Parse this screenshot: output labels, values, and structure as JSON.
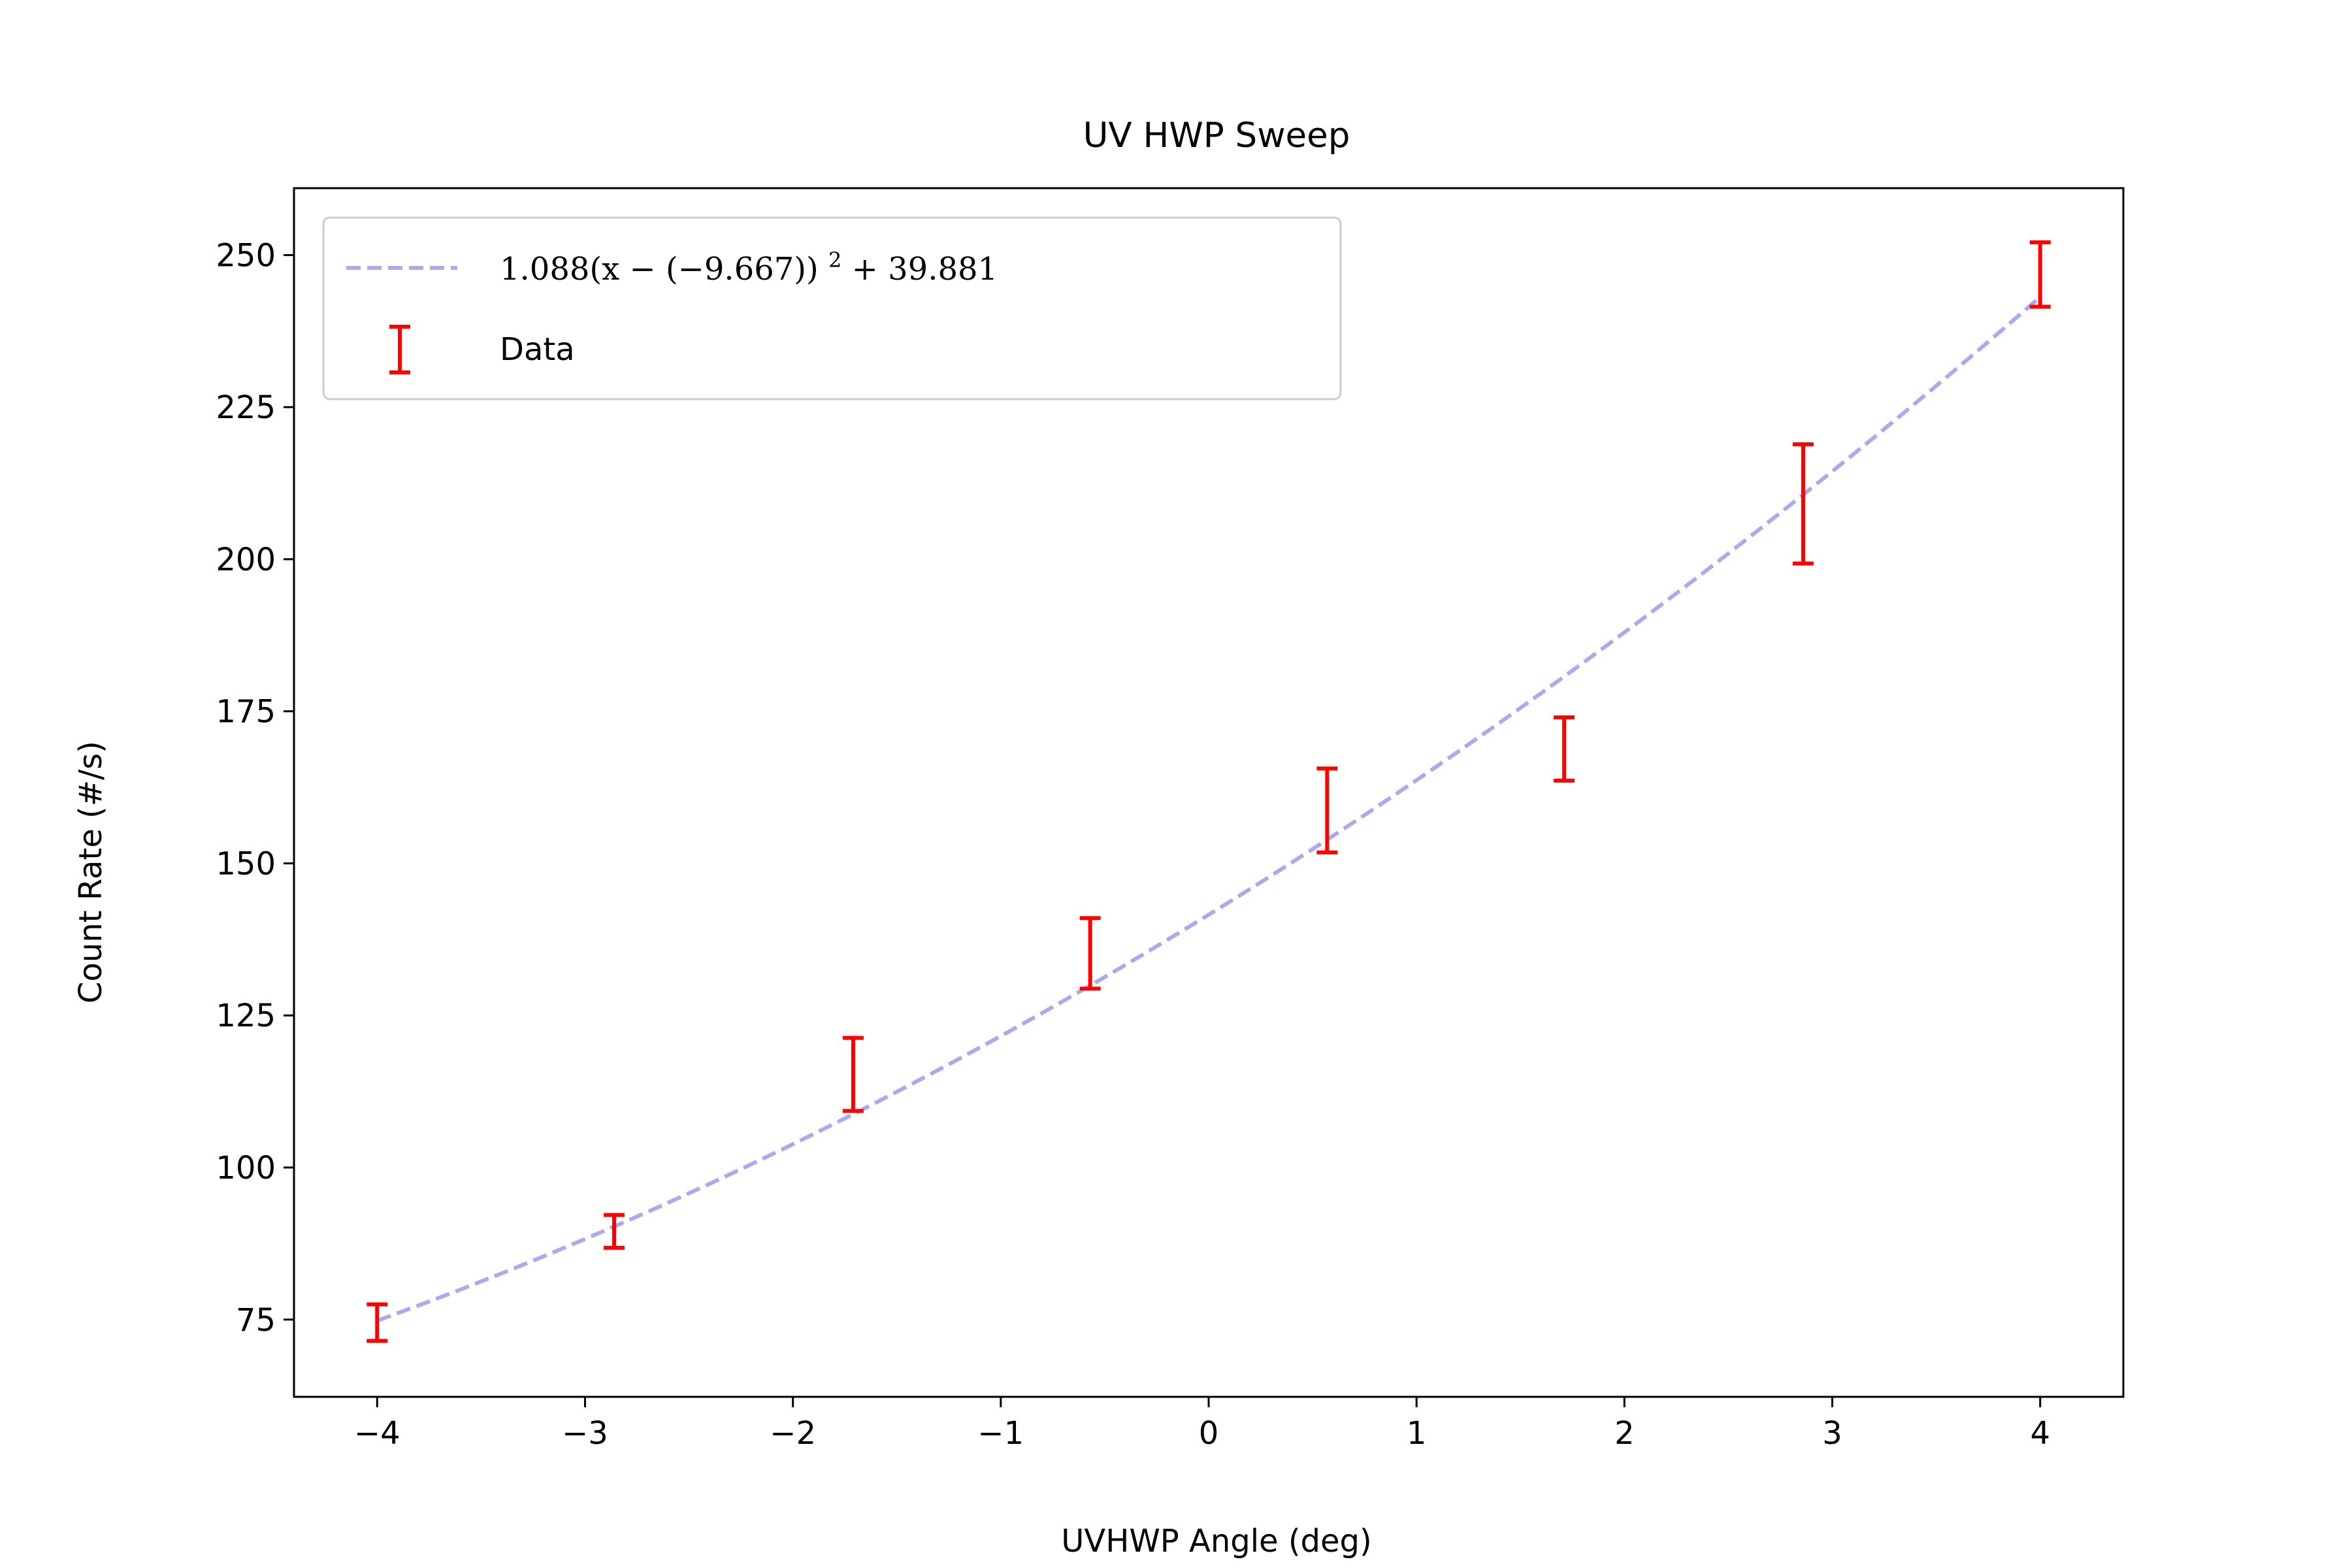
{
  "chart_data": {
    "type": "scatter",
    "title": "UV HWP Sweep",
    "xlabel": "UVHWP Angle (deg)",
    "ylabel": "Count Rate (#/s)",
    "xlim": [
      -4.4,
      4.4
    ],
    "ylim": [
      62.3,
      261.0
    ],
    "xticks": [
      -4,
      -3,
      -2,
      -1,
      0,
      1,
      2,
      3,
      4
    ],
    "xtick_labels": [
      "−4",
      "−3",
      "−2",
      "−1",
      "0",
      "1",
      "2",
      "3",
      "4"
    ],
    "yticks": [
      75,
      100,
      125,
      150,
      175,
      200,
      225,
      250
    ],
    "ytick_labels": [
      "75",
      "100",
      "125",
      "150",
      "175",
      "200",
      "225",
      "250"
    ],
    "grid": false,
    "legend": {
      "placement": "top-left",
      "entries": [
        {
          "label": "1.088(x − (−9.667))² + 39.881",
          "label_main": "1.088(x − (−9.667))",
          "label_sup": "2",
          "label_tail": " + 39.881",
          "style": "dashed-line",
          "color": "#aaaaee"
        },
        {
          "label": "Data",
          "style": "errorbar",
          "color": "#ff0000"
        }
      ]
    },
    "series": [
      {
        "name": "1.088(x − (−9.667))² + 39.881",
        "kind": "fit-curve",
        "color": "#aaaaee",
        "line_style": "dashed",
        "x_range": [
          -4.0,
          4.0
        ],
        "fit": {
          "a": 1.088,
          "x0": -9.667,
          "c": 39.881
        }
      },
      {
        "name": "Data",
        "kind": "errorbar",
        "color": "#ff0000",
        "points": [
          {
            "x": -4.0,
            "y": 74.5,
            "yerr": 3.0
          },
          {
            "x": -2.86,
            "y": 89.5,
            "yerr": 2.7
          },
          {
            "x": -1.71,
            "y": 115.3,
            "yerr": 6.0
          },
          {
            "x": -0.57,
            "y": 135.2,
            "yerr": 5.8
          },
          {
            "x": 0.57,
            "y": 158.7,
            "yerr": 6.9
          },
          {
            "x": 1.71,
            "y": 168.8,
            "yerr": 5.2
          },
          {
            "x": 2.86,
            "y": 209.1,
            "yerr": 9.8
          },
          {
            "x": 4.0,
            "y": 246.8,
            "yerr": 5.3
          }
        ]
      }
    ]
  }
}
